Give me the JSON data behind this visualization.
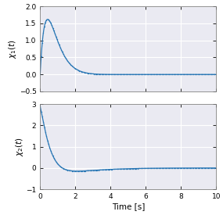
{
  "xlabel": "Time [s]",
  "ylabel1": "$\\chi_1(t)$",
  "ylabel2": "$\\chi_2(t)$",
  "xlim": [
    0,
    10
  ],
  "ylim1": [
    -0.5,
    2.0
  ],
  "ylim2": [
    -1.0,
    3.0
  ],
  "yticks1": [
    -0.5,
    0,
    0.5,
    1.0,
    1.5,
    2.0
  ],
  "yticks2": [
    -1,
    0,
    1,
    2,
    3
  ],
  "xticks": [
    0,
    2,
    4,
    6,
    8,
    10
  ],
  "line_color": "#2977b5",
  "bg_color": "#eaeaf2",
  "grid_color": "#ffffff",
  "marker": ".",
  "markersize": 2.0,
  "linewidth": 0.9,
  "t_end": 10.0,
  "dt": 0.02
}
